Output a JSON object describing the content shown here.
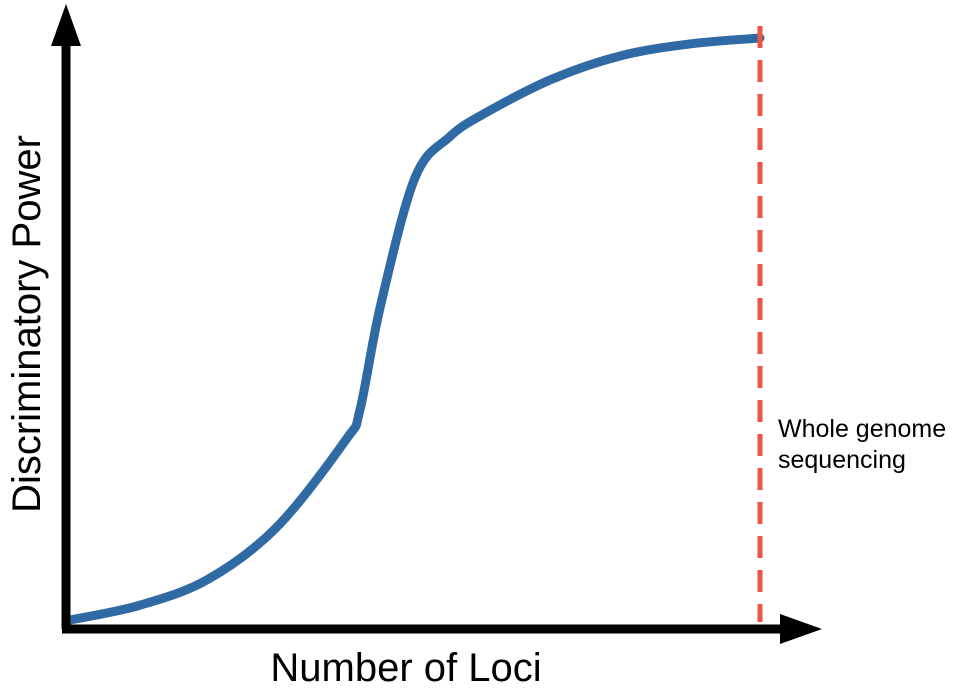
{
  "chart_data": {
    "type": "line",
    "title": "",
    "xlabel": "Number of Loci",
    "ylabel": "Discriminatory Power",
    "x_ticks": [],
    "y_ticks": [],
    "grid": false,
    "series": [
      {
        "color": "#2f6aa5",
        "x": [
          0,
          0.1,
          0.2,
          0.3,
          0.4,
          0.42,
          0.45,
          0.5,
          0.55,
          0.6,
          0.7,
          0.8,
          0.9,
          1.0
        ],
        "y": [
          0,
          0.025,
          0.07,
          0.16,
          0.31,
          0.36,
          0.54,
          0.76,
          0.83,
          0.87,
          0.93,
          0.97,
          0.99,
          1.0
        ]
      }
    ],
    "annotations": [
      {
        "kind": "vertical-line",
        "x": 1.0,
        "style": "dashed",
        "color": "#ee5544",
        "text": [
          "Whole genome",
          "sequencing"
        ]
      }
    ]
  },
  "colors": {
    "axis": "#000000",
    "curve": "#2f6aa5",
    "marker_line": "#ee5544"
  }
}
